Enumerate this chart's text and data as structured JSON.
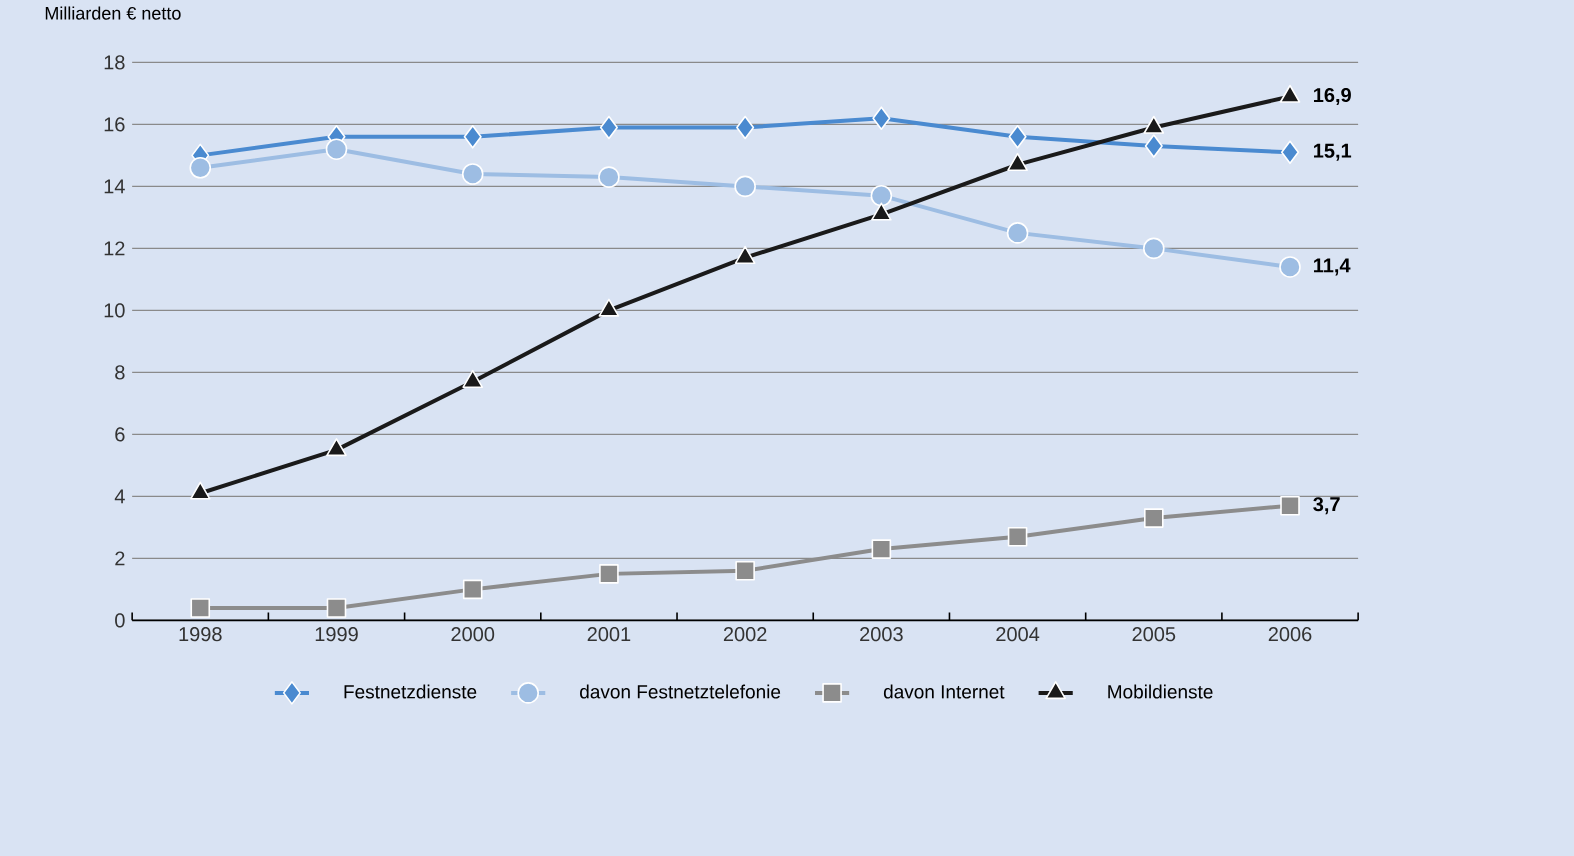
{
  "chart_data": {
    "type": "line",
    "ylabel": "Milliarden € netto",
    "categories": [
      "1998",
      "1999",
      "2000",
      "2001",
      "2002",
      "2003",
      "2004",
      "2005",
      "2006"
    ],
    "series": [
      {
        "name": "Festnetzdienste",
        "color": "#4a8ad0",
        "marker": "diamond",
        "values": [
          15.0,
          15.6,
          15.6,
          15.9,
          15.9,
          16.2,
          15.6,
          15.3,
          15.1
        ],
        "value_labels": [
          null,
          null,
          null,
          null,
          null,
          null,
          null,
          null,
          "15,1"
        ]
      },
      {
        "name": "davon Festnetztelefonie",
        "color": "#9dbde3",
        "marker": "circle",
        "values": [
          14.6,
          15.2,
          14.4,
          14.3,
          14.0,
          13.7,
          12.5,
          12.0,
          11.4
        ],
        "value_labels": [
          null,
          null,
          null,
          null,
          null,
          null,
          null,
          null,
          "11,4"
        ]
      },
      {
        "name": "davon Internet",
        "color": "#8c8c8c",
        "marker": "square",
        "values": [
          0.4,
          0.4,
          1.0,
          1.5,
          1.6,
          2.3,
          2.7,
          3.3,
          3.7
        ],
        "value_labels": [
          null,
          null,
          null,
          null,
          null,
          null,
          null,
          null,
          "3,7"
        ]
      },
      {
        "name": "Mobildienste",
        "color": "#1a1a1a",
        "marker": "triangle",
        "values": [
          4.1,
          5.5,
          7.7,
          10.0,
          11.7,
          13.1,
          14.7,
          15.9,
          16.9
        ],
        "value_labels": [
          null,
          null,
          null,
          null,
          null,
          null,
          null,
          null,
          "16,9"
        ]
      }
    ],
    "ylim": [
      0,
      18
    ],
    "yticks": [
      0,
      2,
      4,
      6,
      8,
      10,
      12,
      14,
      16,
      18
    ],
    "grid": "y",
    "legend": "bottom",
    "line_style": "solid"
  }
}
